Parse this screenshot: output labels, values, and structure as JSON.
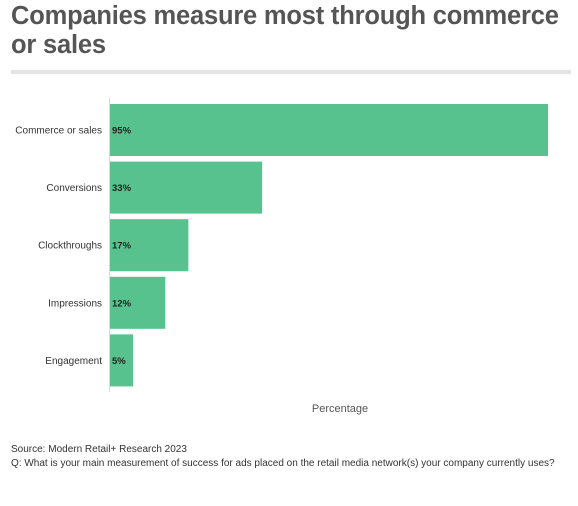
{
  "title": "Companies measure most through commerce or sales",
  "footer": {
    "source": "Source: Modern Retail+ Research 2023",
    "question": "Q: What is your main measurement of success for ads placed on the retail media network(s) your company currently uses?"
  },
  "colors": {
    "bar": "#57c28e",
    "title": "#555555",
    "rule": "#e4e4e4"
  },
  "chart_data": {
    "type": "bar",
    "orientation": "horizontal",
    "categories": [
      "Commerce or sales",
      "Conversions",
      "Clockthroughs",
      "Impressions",
      "Engagement"
    ],
    "values": [
      95,
      33,
      17,
      12,
      5
    ],
    "value_labels": [
      "95%",
      "33%",
      "17%",
      "12%",
      "5%"
    ],
    "xlabel": "Percentage",
    "xlim": [
      0,
      95
    ],
    "grid": false
  }
}
